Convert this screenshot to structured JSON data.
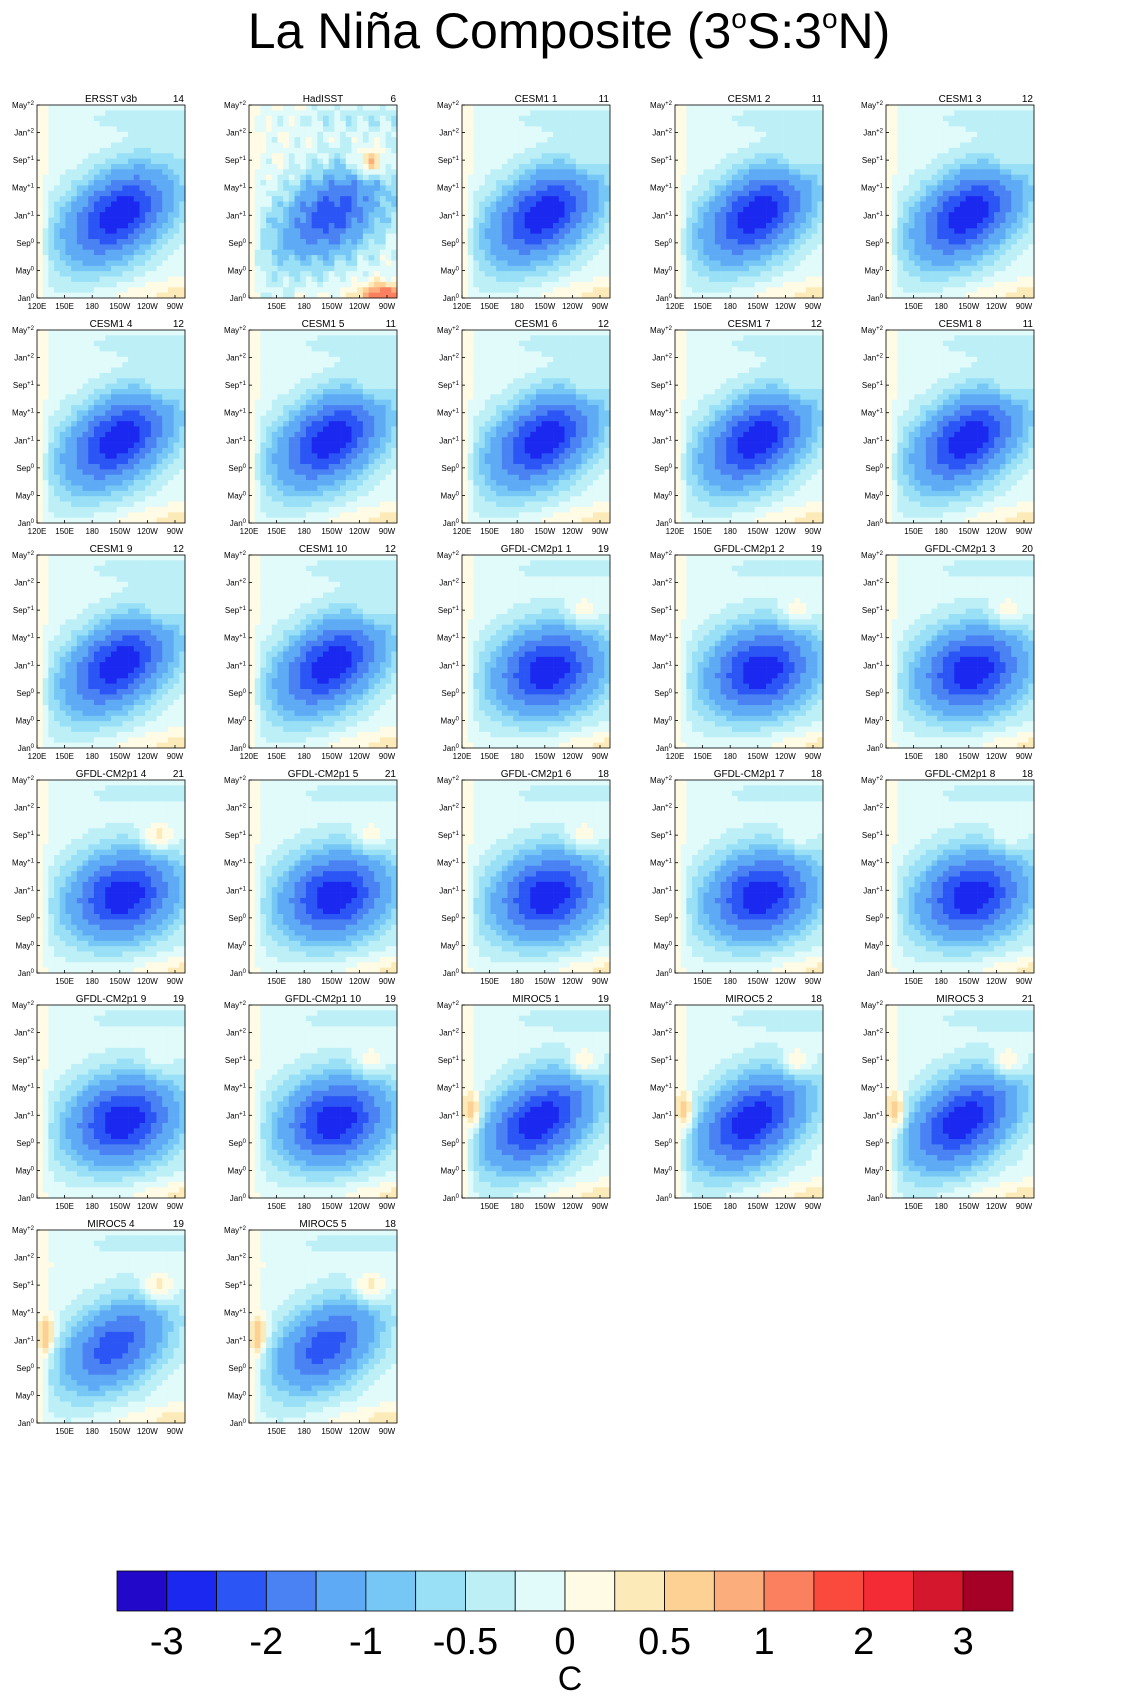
{
  "title": {
    "prefix": "La Niña Composite (3",
    "sup1": "o",
    "mid": "S:3",
    "sup2": "o",
    "suffix": "N)"
  },
  "colors": {
    "levels": [
      -3.5,
      -3,
      -2.5,
      -2,
      -1.5,
      -1,
      -0.75,
      -0.5,
      -0.25,
      0,
      0.25,
      0.5,
      0.75,
      1,
      1.5,
      2,
      2.5,
      3
    ],
    "palette": [
      "#2209c9",
      "#1a28f0",
      "#2b55f5",
      "#4a82f4",
      "#5faaf5",
      "#76c7f5",
      "#99e0f7",
      "#bdeff7",
      "#e1fafa",
      "#fffbe5",
      "#fcebb9",
      "#fcd193",
      "#fbae7b",
      "#fb8060",
      "#fa4a3e",
      "#f42a35",
      "#d5172d",
      "#a50026"
    ]
  },
  "panel_axes": {
    "y_ticks": [
      {
        "base": "Jan",
        "exp": "0"
      },
      {
        "base": "May",
        "exp": "0"
      },
      {
        "base": "Sep",
        "exp": "0"
      },
      {
        "base": "Jan",
        "exp": "+1"
      },
      {
        "base": "May",
        "exp": "+1"
      },
      {
        "base": "Sep",
        "exp": "+1"
      },
      {
        "base": "Jan",
        "exp": "+2"
      },
      {
        "base": "May",
        "exp": "+2"
      }
    ],
    "x_ticks_full": [
      "120E",
      "150E",
      "180",
      "150W",
      "120W",
      "90W"
    ],
    "x_ticks_short": [
      "150E",
      "180",
      "150W",
      "120W",
      "90W"
    ]
  },
  "chart_data": {
    "type": "heatmap",
    "description_units": "SST anomaly (C), Hovmöller: longitude vs time",
    "colorbar": {
      "labels": [
        "-3",
        "-2",
        "-1",
        "-0.5",
        "0",
        "0.5",
        "1",
        "2",
        "3"
      ],
      "unit": "C"
    },
    "panels": [
      {
        "name": "ERSST v3b",
        "count": "14",
        "xaxis": "full",
        "variant": "obs",
        "core": -2.25,
        "warm": 0.1
      },
      {
        "name": "HadISST",
        "count": "6",
        "xaxis": "short",
        "variant": "had",
        "core": -1.75,
        "warm": 1.2
      },
      {
        "name": "CESM1 1",
        "count": "11",
        "xaxis": "full",
        "variant": "cesm",
        "core": -2.25,
        "warm": 0.4
      },
      {
        "name": "CESM1 2",
        "count": "11",
        "xaxis": "full",
        "variant": "cesm",
        "core": -2.25,
        "warm": 0.4
      },
      {
        "name": "CESM1 3",
        "count": "12",
        "xaxis": "short",
        "variant": "cesm",
        "core": -2.25,
        "warm": 0.4
      },
      {
        "name": "CESM1 4",
        "count": "12",
        "xaxis": "full",
        "variant": "cesm",
        "core": -2.25,
        "warm": 0.4
      },
      {
        "name": "CESM1 5",
        "count": "11",
        "xaxis": "full",
        "variant": "cesm",
        "core": -2.25,
        "warm": 0.4
      },
      {
        "name": "CESM1 6",
        "count": "12",
        "xaxis": "full",
        "variant": "cesm",
        "core": -2.25,
        "warm": 0.4
      },
      {
        "name": "CESM1 7",
        "count": "12",
        "xaxis": "full",
        "variant": "cesm",
        "core": -2.25,
        "warm": 0.4
      },
      {
        "name": "CESM1 8",
        "count": "11",
        "xaxis": "short",
        "variant": "cesm",
        "core": -2.25,
        "warm": 0.4
      },
      {
        "name": "CESM1 9",
        "count": "12",
        "xaxis": "full",
        "variant": "cesm",
        "core": -2.25,
        "warm": 0.4
      },
      {
        "name": "CESM1 10",
        "count": "12",
        "xaxis": "full",
        "variant": "cesm",
        "core": -2.25,
        "warm": 0.4
      },
      {
        "name": "GFDL-CM2p1 1",
        "count": "19",
        "xaxis": "full",
        "variant": "gfdl",
        "core": -2.25,
        "warm": 0.6
      },
      {
        "name": "GFDL-CM2p1 2",
        "count": "19",
        "xaxis": "full",
        "variant": "gfdl",
        "core": -2.25,
        "warm": 0.6
      },
      {
        "name": "GFDL-CM2p1 3",
        "count": "20",
        "xaxis": "short",
        "variant": "gfdl",
        "core": -2.25,
        "warm": 0.6
      },
      {
        "name": "GFDL-CM2p1 4",
        "count": "21",
        "xaxis": "short",
        "variant": "gfdl",
        "core": -2.25,
        "warm": 0.8
      },
      {
        "name": "GFDL-CM2p1 5",
        "count": "21",
        "xaxis": "short",
        "variant": "gfdl",
        "core": -2.25,
        "warm": 0.6
      },
      {
        "name": "GFDL-CM2p1 6",
        "count": "18",
        "xaxis": "short",
        "variant": "gfdl",
        "core": -2.25,
        "warm": 0.6
      },
      {
        "name": "GFDL-CM2p1 7",
        "count": "18",
        "xaxis": "short",
        "variant": "gfdl",
        "core": -2.25,
        "warm": 0.4
      },
      {
        "name": "GFDL-CM2p1 8",
        "count": "18",
        "xaxis": "short",
        "variant": "gfdl",
        "core": -2.25,
        "warm": 0.4
      },
      {
        "name": "GFDL-CM2p1 9",
        "count": "19",
        "xaxis": "short",
        "variant": "gfdl",
        "core": -2.25,
        "warm": 0.3
      },
      {
        "name": "GFDL-CM2p1 10",
        "count": "19",
        "xaxis": "short",
        "variant": "gfdl",
        "core": -2.25,
        "warm": 0.6
      },
      {
        "name": "MIROC5 1",
        "count": "19",
        "xaxis": "short",
        "variant": "miroc",
        "core": -2.25,
        "warm": 0.8
      },
      {
        "name": "MIROC5 2",
        "count": "18",
        "xaxis": "short",
        "variant": "miroc",
        "core": -2.25,
        "warm": 0.8
      },
      {
        "name": "MIROC5 3",
        "count": "21",
        "xaxis": "short",
        "variant": "miroc",
        "core": -2.25,
        "warm": 0.8
      },
      {
        "name": "MIROC5 4",
        "count": "19",
        "xaxis": "short",
        "variant": "miroc",
        "core": -1.75,
        "warm": 0.8
      },
      {
        "name": "MIROC5 5",
        "count": "18",
        "xaxis": "short",
        "variant": "miroc",
        "core": -1.75,
        "warm": 0.8
      }
    ]
  }
}
